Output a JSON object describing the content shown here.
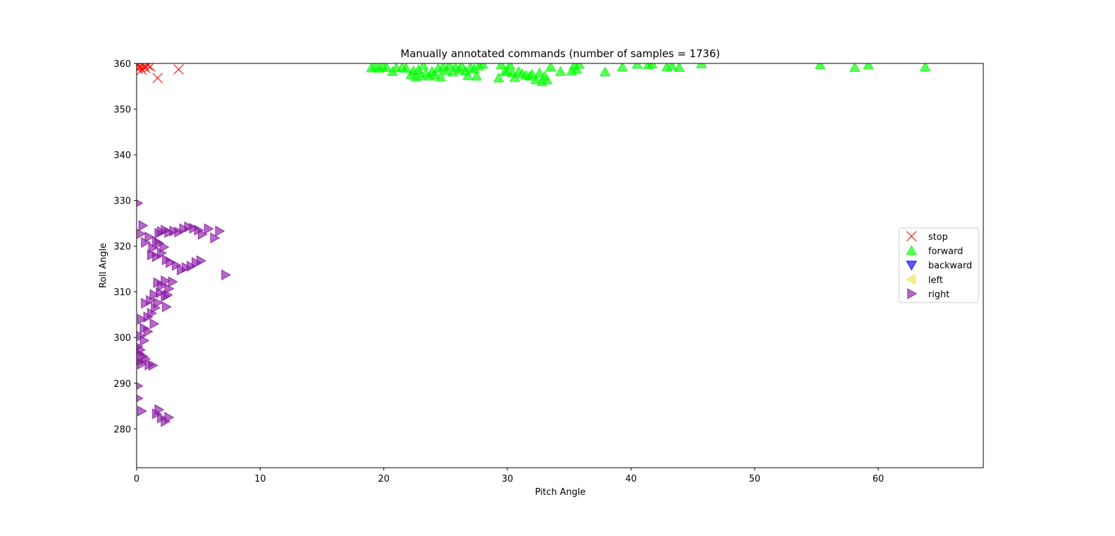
{
  "chart_data": {
    "type": "scatter",
    "title": "Manually annotated commands (number of samples = 1736)",
    "xlabel": "Pitch Angle",
    "ylabel": "Roll Angle",
    "xlim": [
      0,
      68.5
    ],
    "ylim": [
      271.5,
      360
    ],
    "xticks": [
      0,
      10,
      20,
      30,
      40,
      50,
      60
    ],
    "yticks": [
      280,
      290,
      300,
      310,
      320,
      330,
      340,
      350,
      360
    ],
    "grid": false,
    "legend_position": "center-right",
    "series": [
      {
        "name": "stop",
        "marker": "x",
        "color": "#ff0000",
        "points": [
          [
            0.05,
            359.5
          ],
          [
            0.1,
            358.8
          ],
          [
            0.2,
            359.8
          ],
          [
            0.3,
            359.2
          ],
          [
            0.4,
            358.6
          ],
          [
            0.5,
            359.9
          ],
          [
            0.6,
            359.4
          ],
          [
            0.7,
            359.0
          ],
          [
            0.9,
            359.6
          ],
          [
            1.1,
            359.3
          ],
          [
            1.7,
            356.8
          ],
          [
            3.4,
            358.7
          ]
        ]
      },
      {
        "name": "forward",
        "marker": "triangle-up",
        "color": "#00ff00",
        "points": [
          [
            19.0,
            359.0
          ],
          [
            19.3,
            359.3
          ],
          [
            19.6,
            358.9
          ],
          [
            19.9,
            359.4
          ],
          [
            20.2,
            359.1
          ],
          [
            20.7,
            358.2
          ],
          [
            21.0,
            359.0
          ],
          [
            21.5,
            359.2
          ],
          [
            21.8,
            358.9
          ],
          [
            22.2,
            357.5
          ],
          [
            22.4,
            358.4
          ],
          [
            22.6,
            357.0
          ],
          [
            22.8,
            358.6
          ],
          [
            23.0,
            357.3
          ],
          [
            23.2,
            359.5
          ],
          [
            23.4,
            357.8
          ],
          [
            23.7,
            357.2
          ],
          [
            23.9,
            358.2
          ],
          [
            24.1,
            357.6
          ],
          [
            24.4,
            358.9
          ],
          [
            24.6,
            357.0
          ],
          [
            24.8,
            359.3
          ],
          [
            25.1,
            358.4
          ],
          [
            25.3,
            359.6
          ],
          [
            25.6,
            358.1
          ],
          [
            25.8,
            359.2
          ],
          [
            26.1,
            358.6
          ],
          [
            26.3,
            359.4
          ],
          [
            26.6,
            358.3
          ],
          [
            26.8,
            357.3
          ],
          [
            27.0,
            359.1
          ],
          [
            27.3,
            358.8
          ],
          [
            27.5,
            357.2
          ],
          [
            27.7,
            359.4
          ],
          [
            28.0,
            359.8
          ],
          [
            29.3,
            356.8
          ],
          [
            29.5,
            359.7
          ],
          [
            29.8,
            358.2
          ],
          [
            30.0,
            358.4
          ],
          [
            30.2,
            359.6
          ],
          [
            30.4,
            357.9
          ],
          [
            30.6,
            356.9
          ],
          [
            30.9,
            358.2
          ],
          [
            31.2,
            357.7
          ],
          [
            31.5,
            357.4
          ],
          [
            31.8,
            357.2
          ],
          [
            32.0,
            357.6
          ],
          [
            32.3,
            356.4
          ],
          [
            32.6,
            357.9
          ],
          [
            32.8,
            356.0
          ],
          [
            33.0,
            357.2
          ],
          [
            33.2,
            356.4
          ],
          [
            33.5,
            359.2
          ],
          [
            34.3,
            358.2
          ],
          [
            35.2,
            358.3
          ],
          [
            35.4,
            359.5
          ],
          [
            35.6,
            358.7
          ],
          [
            35.8,
            359.8
          ],
          [
            37.9,
            358.1
          ],
          [
            39.3,
            359.2
          ],
          [
            40.5,
            359.8
          ],
          [
            41.4,
            359.7
          ],
          [
            41.7,
            359.9
          ],
          [
            42.9,
            359.2
          ],
          [
            43.3,
            359.5
          ],
          [
            43.9,
            359.1
          ],
          [
            45.7,
            359.9
          ],
          [
            55.3,
            359.7
          ],
          [
            58.1,
            359.1
          ],
          [
            59.2,
            359.7
          ],
          [
            63.8,
            359.2
          ]
        ]
      },
      {
        "name": "backward",
        "marker": "triangle-down",
        "color": "#0000ff",
        "points": []
      },
      {
        "name": "left",
        "marker": "triangle-left",
        "color": "#f0e442",
        "points": []
      },
      {
        "name": "right",
        "marker": "triangle-right",
        "color": "#8b1aa5",
        "points": [
          [
            0.1,
            329.4
          ],
          [
            0.5,
            324.5
          ],
          [
            0.3,
            322.7
          ],
          [
            0.7,
            320.8
          ],
          [
            1.0,
            322.0
          ],
          [
            1.3,
            319.6
          ],
          [
            1.6,
            321.0
          ],
          [
            1.8,
            322.8
          ],
          [
            2.0,
            323.2
          ],
          [
            2.3,
            323.5
          ],
          [
            2.6,
            323.0
          ],
          [
            3.0,
            323.3
          ],
          [
            3.4,
            323.1
          ],
          [
            3.8,
            323.8
          ],
          [
            4.2,
            324.2
          ],
          [
            4.6,
            323.9
          ],
          [
            5.0,
            323.5
          ],
          [
            5.3,
            322.6
          ],
          [
            5.8,
            323.8
          ],
          [
            6.3,
            321.8
          ],
          [
            6.7,
            323.3
          ],
          [
            1.2,
            318.1
          ],
          [
            1.6,
            317.7
          ],
          [
            2.0,
            318.5
          ],
          [
            2.4,
            317.0
          ],
          [
            2.7,
            316.4
          ],
          [
            3.2,
            315.8
          ],
          [
            3.6,
            314.8
          ],
          [
            4.0,
            315.3
          ],
          [
            4.4,
            315.6
          ],
          [
            4.8,
            316.4
          ],
          [
            5.2,
            316.8
          ],
          [
            1.8,
            320.6
          ],
          [
            2.2,
            319.8
          ],
          [
            7.2,
            313.7
          ],
          [
            1.7,
            312.0
          ],
          [
            2.0,
            311.3
          ],
          [
            2.3,
            312.4
          ],
          [
            2.6,
            310.7
          ],
          [
            2.9,
            312.2
          ],
          [
            1.4,
            309.4
          ],
          [
            1.9,
            309.8
          ],
          [
            2.3,
            309.0
          ],
          [
            2.5,
            309.3
          ],
          [
            0.7,
            307.5
          ],
          [
            1.1,
            308.1
          ],
          [
            1.5,
            306.5
          ],
          [
            1.7,
            307.6
          ],
          [
            2.4,
            306.7
          ],
          [
            0.9,
            304.5
          ],
          [
            1.2,
            305.3
          ],
          [
            1.4,
            303.0
          ],
          [
            0.4,
            304.0
          ],
          [
            0.6,
            302.0
          ],
          [
            0.9,
            301.3
          ],
          [
            0.3,
            300.3
          ],
          [
            0.6,
            299.3
          ],
          [
            0.1,
            298.0
          ],
          [
            0.3,
            297.3
          ],
          [
            0.2,
            296.5
          ],
          [
            0.5,
            295.9
          ],
          [
            0.7,
            295.3
          ],
          [
            0.2,
            294.8
          ],
          [
            0.4,
            294.2
          ],
          [
            1.0,
            294.0
          ],
          [
            1.3,
            293.9
          ],
          [
            0.1,
            289.4
          ],
          [
            0.1,
            286.7
          ],
          [
            0.4,
            283.9
          ],
          [
            1.6,
            283.3
          ],
          [
            1.8,
            284.2
          ],
          [
            2.0,
            282.4
          ],
          [
            2.3,
            281.6
          ],
          [
            2.6,
            282.5
          ]
        ]
      }
    ]
  }
}
